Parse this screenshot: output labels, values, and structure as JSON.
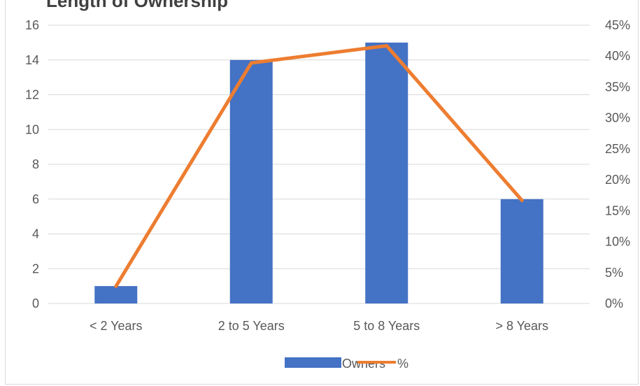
{
  "chart_data": {
    "type": "bar",
    "title": "Length of Ownership",
    "categories": [
      "< 2 Years",
      "2 to 5 Years",
      "5 to 8 Years",
      "> 8 Years"
    ],
    "series": [
      {
        "name": "Owners",
        "type": "bar",
        "axis": "left",
        "values": [
          1,
          14,
          15,
          6
        ],
        "color": "#4472C4"
      },
      {
        "name": "%",
        "type": "line",
        "axis": "right",
        "values": [
          0.0278,
          0.3889,
          0.4167,
          0.1667
        ],
        "color": "#ED7D31"
      }
    ],
    "y_left": {
      "min": 0,
      "max": 16,
      "step": 2,
      "ticks": [
        "0",
        "2",
        "4",
        "6",
        "8",
        "10",
        "12",
        "14",
        "16"
      ]
    },
    "y_right": {
      "min": 0,
      "max": 0.45,
      "step": 0.05,
      "ticks": [
        "0%",
        "5%",
        "10%",
        "15%",
        "20%",
        "25%",
        "30%",
        "35%",
        "40%",
        "45%"
      ]
    },
    "grid": true,
    "legend": "bottom"
  },
  "colors": {
    "gridline": "#d9d9d9",
    "text": "#595959"
  }
}
